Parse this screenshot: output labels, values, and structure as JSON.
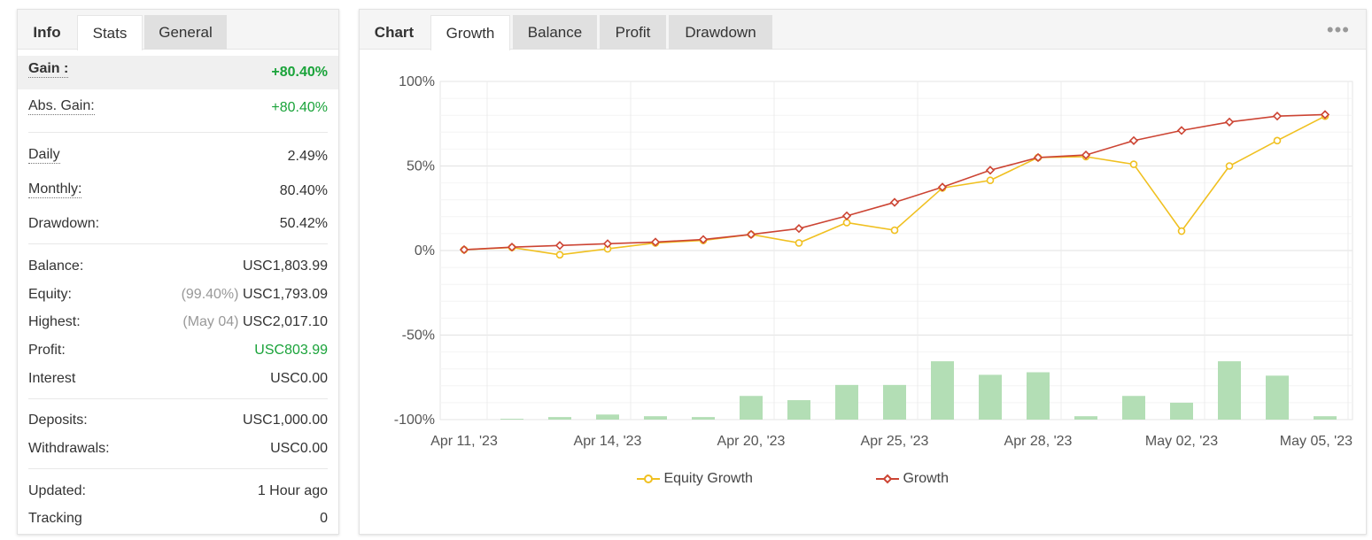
{
  "left": {
    "tabs": [
      {
        "label": "Info"
      },
      {
        "label": "Stats"
      },
      {
        "label": "General"
      }
    ],
    "gain": {
      "label": "Gain :",
      "value": "+80.40%"
    },
    "abs_gain": {
      "label": "Abs. Gain:",
      "value": "+80.40%"
    },
    "daily": {
      "label": "Daily",
      "value": "2.49%"
    },
    "monthly": {
      "label": "Monthly:",
      "value": "80.40%"
    },
    "drawdown": {
      "label": "Drawdown:",
      "value": "50.42%"
    },
    "balance": {
      "label": "Balance:",
      "value": "USC1,803.99"
    },
    "equity": {
      "label": "Equity:",
      "sub": "(99.40%)",
      "value": "USC1,793.09"
    },
    "highest": {
      "label": "Highest:",
      "sub": "(May 04)",
      "value": "USC2,017.10"
    },
    "profit": {
      "label": "Profit:",
      "value": "USC803.99"
    },
    "interest": {
      "label": "Interest",
      "value": "USC0.00"
    },
    "deposits": {
      "label": "Deposits:",
      "value": "USC1,000.00"
    },
    "withdrawals": {
      "label": "Withdrawals:",
      "value": "USC0.00"
    },
    "updated": {
      "label": "Updated:",
      "value": "1 Hour ago"
    },
    "tracking": {
      "label": "Tracking",
      "value": "0"
    }
  },
  "right": {
    "tabs": [
      {
        "label": "Chart"
      },
      {
        "label": "Growth"
      },
      {
        "label": "Balance"
      },
      {
        "label": "Profit"
      },
      {
        "label": "Drawdown"
      }
    ],
    "menu_icon": "more-dots-icon"
  },
  "colors": {
    "equity": "#f0c020",
    "growth": "#cc4433",
    "bars": "#b3deb5",
    "gain_green": "#1aa33a"
  },
  "chart_data": {
    "type": "line",
    "y_ticks": [
      "100%",
      "50%",
      "0%",
      "-50%",
      "-100%"
    ],
    "ylim": [
      -100,
      100
    ],
    "x_tick_labels": [
      "Apr 11, '23",
      "Apr 14, '23",
      "Apr 20, '23",
      "Apr 25, '23",
      "Apr 28, '23",
      "May 02, '23",
      "May 05, '23"
    ],
    "x_tick_points": [
      0,
      3,
      6,
      9,
      12,
      15,
      18
    ],
    "series": [
      {
        "name": "Equity Growth",
        "values": [
          0.5,
          1.8,
          -2.5,
          1,
          4.5,
          6,
          9.5,
          4.5,
          16.5,
          12,
          37,
          41.5,
          55,
          55.5,
          51,
          11.5,
          50,
          65,
          79.5
        ]
      },
      {
        "name": "Growth",
        "values": [
          0.5,
          2,
          3,
          4,
          5,
          6.5,
          9.5,
          13,
          20.5,
          28.5,
          37.5,
          47.5,
          55,
          56.5,
          65,
          71,
          76,
          79.5,
          80.4
        ]
      }
    ],
    "bars": {
      "values": [
        0,
        0.5,
        1.5,
        3,
        2,
        1.5,
        14,
        11.5,
        20.5,
        20.5,
        34.5,
        26.5,
        28,
        2,
        14,
        10,
        34.5,
        26,
        2
      ]
    },
    "legend": "bottom-center"
  }
}
